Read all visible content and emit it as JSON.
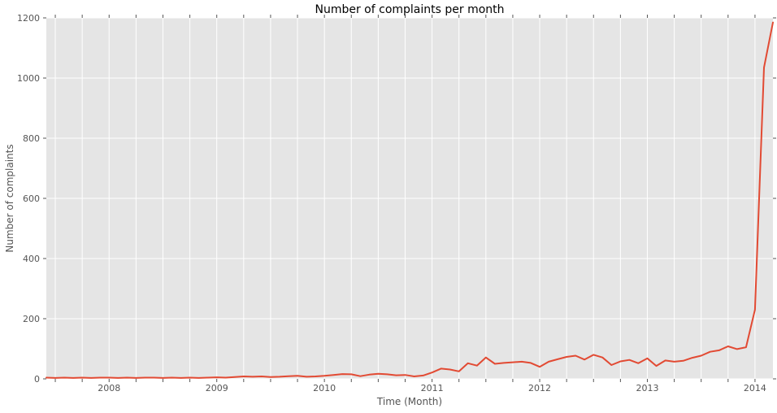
{
  "chart_data": {
    "type": "line",
    "title": "Number of complaints per month",
    "xlabel": "Time (Month)",
    "ylabel": "Number of complaints",
    "ylim": [
      0,
      1200
    ],
    "y_ticks": [
      0,
      200,
      400,
      600,
      800,
      1000,
      1200
    ],
    "x_tick_year_labels": [
      "2008",
      "2009",
      "2010",
      "2011",
      "2012",
      "2013",
      "2014"
    ],
    "grid": true,
    "legend": false,
    "style": {
      "plot_background": "#E5E5E5",
      "grid_color": "#FFFFFF",
      "tick_color": "#555555",
      "label_color": "#555555",
      "title_color": "#000000",
      "line_color": "#E24A33"
    },
    "series": [
      {
        "name": "complaints",
        "color": "#E24A33",
        "x": [
          "2007-06",
          "2007-07",
          "2007-08",
          "2007-09",
          "2007-10",
          "2007-11",
          "2007-12",
          "2008-01",
          "2008-02",
          "2008-03",
          "2008-04",
          "2008-05",
          "2008-06",
          "2008-07",
          "2008-08",
          "2008-09",
          "2008-10",
          "2008-11",
          "2008-12",
          "2009-01",
          "2009-02",
          "2009-03",
          "2009-04",
          "2009-05",
          "2009-06",
          "2009-07",
          "2009-08",
          "2009-09",
          "2009-10",
          "2009-11",
          "2009-12",
          "2010-01",
          "2010-02",
          "2010-03",
          "2010-04",
          "2010-05",
          "2010-06",
          "2010-07",
          "2010-08",
          "2010-09",
          "2010-10",
          "2010-11",
          "2010-12",
          "2011-01",
          "2011-02",
          "2011-03",
          "2011-04",
          "2011-05",
          "2011-06",
          "2011-07",
          "2011-08",
          "2011-09",
          "2011-10",
          "2011-11",
          "2011-12",
          "2012-01",
          "2012-02",
          "2012-03",
          "2012-04",
          "2012-05",
          "2012-06",
          "2012-07",
          "2012-08",
          "2012-09",
          "2012-10",
          "2012-11",
          "2012-12",
          "2013-01",
          "2013-02",
          "2013-03",
          "2013-04",
          "2013-05",
          "2013-06",
          "2013-07",
          "2013-08",
          "2013-09",
          "2013-10",
          "2013-11",
          "2013-12",
          "2014-01",
          "2014-02",
          "2014-03"
        ],
        "values": [
          4,
          3,
          4,
          3,
          4,
          3,
          4,
          4,
          3,
          4,
          3,
          4,
          4,
          3,
          4,
          3,
          4,
          3,
          4,
          5,
          4,
          6,
          8,
          7,
          8,
          6,
          7,
          9,
          10,
          7,
          8,
          10,
          13,
          16,
          15,
          9,
          14,
          17,
          15,
          12,
          13,
          8,
          11,
          21,
          34,
          31,
          25,
          52,
          44,
          71,
          50,
          53,
          55,
          57,
          53,
          40,
          57,
          65,
          73,
          77,
          64,
          80,
          71,
          46,
          58,
          63,
          52,
          68,
          43,
          61,
          57,
          60,
          70,
          77,
          90,
          95,
          108,
          99,
          105,
          230,
          1035,
          1185
        ]
      }
    ]
  }
}
